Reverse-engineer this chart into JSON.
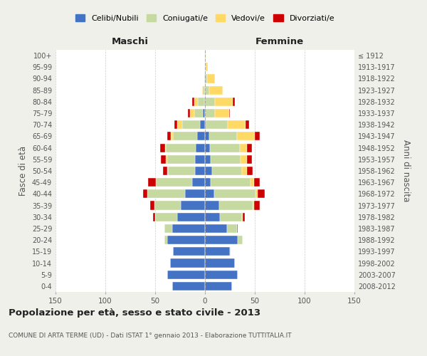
{
  "age_groups": [
    "0-4",
    "5-9",
    "10-14",
    "15-19",
    "20-24",
    "25-29",
    "30-34",
    "35-39",
    "40-44",
    "45-49",
    "50-54",
    "55-59",
    "60-64",
    "65-69",
    "70-74",
    "75-79",
    "80-84",
    "85-89",
    "90-94",
    "95-99",
    "100+"
  ],
  "birth_years": [
    "2008-2012",
    "2003-2007",
    "1998-2002",
    "1993-1997",
    "1988-1992",
    "1983-1987",
    "1978-1982",
    "1973-1977",
    "1968-1972",
    "1963-1967",
    "1958-1962",
    "1953-1957",
    "1948-1952",
    "1943-1947",
    "1938-1942",
    "1933-1937",
    "1928-1932",
    "1923-1927",
    "1918-1922",
    "1913-1917",
    "≤ 1912"
  ],
  "maschi": {
    "celibi": [
      33,
      38,
      35,
      32,
      38,
      33,
      28,
      24,
      20,
      13,
      10,
      10,
      9,
      8,
      5,
      2,
      1,
      0,
      0,
      0,
      0
    ],
    "coniugati": [
      0,
      0,
      0,
      0,
      3,
      8,
      22,
      27,
      38,
      36,
      27,
      28,
      30,
      24,
      18,
      9,
      6,
      2,
      1,
      0,
      0
    ],
    "vedovi": [
      0,
      0,
      0,
      0,
      0,
      0,
      0,
      0,
      0,
      0,
      1,
      1,
      1,
      2,
      5,
      4,
      4,
      1,
      0,
      0,
      0
    ],
    "divorziati": [
      0,
      0,
      0,
      0,
      0,
      0,
      2,
      4,
      4,
      8,
      4,
      5,
      5,
      4,
      3,
      2,
      2,
      0,
      0,
      0,
      0
    ]
  },
  "femmine": {
    "nubili": [
      27,
      33,
      30,
      25,
      33,
      22,
      15,
      14,
      9,
      6,
      7,
      6,
      5,
      4,
      1,
      0,
      0,
      0,
      0,
      0,
      0
    ],
    "coniugate": [
      0,
      0,
      0,
      1,
      5,
      10,
      22,
      34,
      42,
      40,
      30,
      30,
      30,
      28,
      22,
      10,
      10,
      4,
      2,
      1,
      0
    ],
    "vedove": [
      0,
      0,
      0,
      0,
      0,
      0,
      1,
      1,
      2,
      3,
      5,
      6,
      7,
      18,
      18,
      14,
      18,
      14,
      8,
      2,
      1
    ],
    "divorziate": [
      0,
      0,
      0,
      0,
      0,
      1,
      2,
      6,
      7,
      6,
      6,
      5,
      5,
      5,
      3,
      1,
      2,
      0,
      0,
      0,
      0
    ]
  },
  "colors": {
    "celibi": "#4472C4",
    "coniugati": "#c5d9a0",
    "vedovi": "#FFD966",
    "divorziati": "#CC0000"
  },
  "xlim": 150,
  "title": "Popolazione per età, sesso e stato civile - 2013",
  "subtitle": "COMUNE DI ARTA TERME (UD) - Dati ISTAT 1° gennaio 2013 - Elaborazione TUTTITALIA.IT",
  "xlabel_left": "Maschi",
  "xlabel_right": "Femmine",
  "ylabel": "Fasce di età",
  "ylabel_right": "Anni di nascita",
  "legend_labels": [
    "Celibi/Nubili",
    "Coniugati/e",
    "Vedovi/e",
    "Divorziati/e"
  ],
  "bg_color": "#f0f0eb",
  "plot_bg": "#ffffff",
  "grid_color": "#cccccc",
  "text_color": "#555555",
  "title_color": "#222222"
}
